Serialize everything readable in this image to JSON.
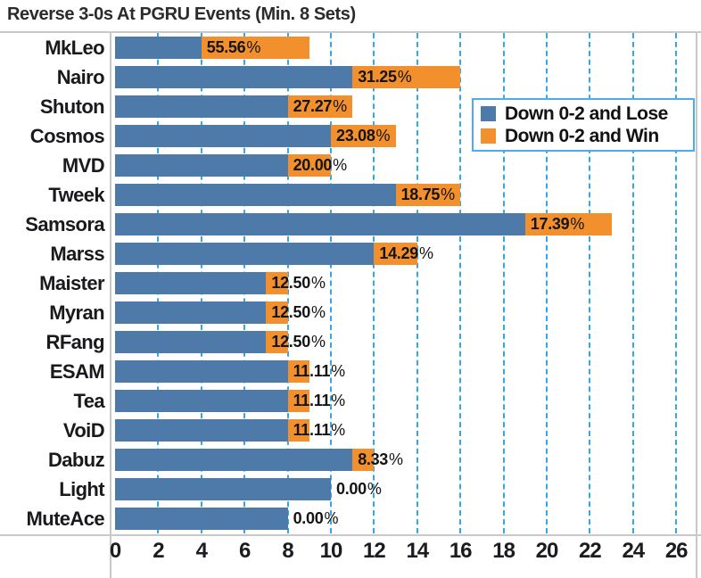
{
  "title": "Reverse 3-0s At PGRU Events (Min. 8 Sets)",
  "legend": {
    "items": [
      {
        "label": "Down 0-2 and Lose",
        "color": "#4d7aa9"
      },
      {
        "label": "Down 0-2 and Win",
        "color": "#f2902e"
      }
    ]
  },
  "colors": {
    "grid": "#35a7e2",
    "frame": "#c9c8c8",
    "legend_border": "#4facea",
    "bar_blue": "#4d7aa9",
    "bar_orange": "#f2902e",
    "text": "#2b2a2e"
  },
  "chart_data": {
    "type": "bar",
    "orientation": "horizontal",
    "stacked": true,
    "title": "Reverse 3-0s At PGRU Events (Min. 8 Sets)",
    "categories": [
      "MkLeo",
      "Nairo",
      "Shuton",
      "Cosmos",
      "MVD",
      "Tweek",
      "Samsora",
      "Marss",
      "Maister",
      "Myran",
      "RFang",
      "ESAM",
      "Tea",
      "VoiD",
      "Dabuz",
      "Light",
      "MuteAce"
    ],
    "series": [
      {
        "name": "Down 0-2 and Lose",
        "color": "#4d7aa9",
        "values": [
          4,
          11,
          8,
          10,
          8,
          13,
          19,
          12,
          7,
          7,
          7,
          8,
          8,
          8,
          11,
          10,
          8
        ]
      },
      {
        "name": "Down 0-2 and Win",
        "color": "#f2902e",
        "values": [
          5,
          5,
          3,
          3,
          2,
          3,
          4,
          2,
          1,
          1,
          1,
          1,
          1,
          1,
          1,
          0,
          0
        ]
      }
    ],
    "bar_labels": [
      "55.56%",
      "31.25%",
      "27.27%",
      "23.08%",
      "20.00%",
      "18.75%",
      "17.39%",
      "14.29%",
      "12.50%",
      "12.50%",
      "12.50%",
      "11.11%",
      "11.11%",
      "11.11%",
      "8.33%",
      "0.00%",
      "0.00%"
    ],
    "x_ticks": [
      0,
      2,
      4,
      6,
      8,
      10,
      12,
      14,
      16,
      18,
      20,
      22,
      24,
      26
    ],
    "xlim": [
      0,
      27
    ],
    "xlabel": "",
    "ylabel": "",
    "grid": "vertical-dashed",
    "legend_position": "upper-right"
  }
}
